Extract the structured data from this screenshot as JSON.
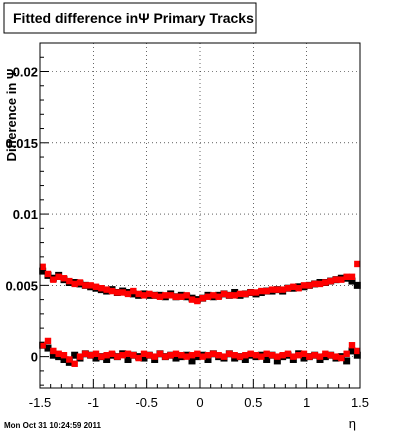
{
  "chart_data": {
    "type": "scatter",
    "title": "Fitted difference inΨ   Primary Tracks",
    "xlabel": "η",
    "ylabel": "Difference in Ψ",
    "xlim": [
      -1.5,
      1.5
    ],
    "ylim": [
      -0.0022,
      0.022
    ],
    "x_ticks": [
      -1.5,
      -1,
      -0.5,
      0,
      0.5,
      1,
      1.5
    ],
    "x_tick_labels": [
      "-1.5",
      "-1",
      "-0.5",
      "0",
      "0.5",
      "1",
      "1.5"
    ],
    "y_ticks": [
      0,
      0.005,
      0.01,
      0.015,
      0.02
    ],
    "y_tick_labels": [
      "0",
      "0.005",
      "0.01",
      "0.015",
      "0.02"
    ],
    "grid": true,
    "series": [
      {
        "color": "#000000",
        "x": [
          -1.475,
          -1.425,
          -1.375,
          -1.325,
          -1.275,
          -1.225,
          -1.175,
          -1.125,
          -1.075,
          -1.025,
          -0.975,
          -0.925,
          -0.875,
          -0.825,
          -0.775,
          -0.725,
          -0.675,
          -0.625,
          -0.575,
          -0.525,
          -0.475,
          -0.425,
          -0.375,
          -0.325,
          -0.275,
          -0.225,
          -0.175,
          -0.125,
          -0.075,
          -0.025,
          0.025,
          0.075,
          0.125,
          0.175,
          0.225,
          0.275,
          0.325,
          0.375,
          0.425,
          0.475,
          0.525,
          0.575,
          0.625,
          0.675,
          0.725,
          0.775,
          0.825,
          0.875,
          0.925,
          0.975,
          1.025,
          1.075,
          1.125,
          1.175,
          1.225,
          1.275,
          1.325,
          1.375,
          1.425,
          1.475,
          -1.475,
          -1.425,
          -1.375,
          -1.325,
          -1.275,
          -1.225,
          -1.175,
          -1.125,
          -1.075,
          -1.025,
          -0.975,
          -0.925,
          -0.875,
          -0.825,
          -0.775,
          -0.725,
          -0.675,
          -0.625,
          -0.575,
          -0.525,
          -0.475,
          -0.425,
          -0.375,
          -0.325,
          -0.275,
          -0.225,
          -0.175,
          -0.125,
          -0.075,
          -0.025,
          0.025,
          0.075,
          0.125,
          0.175,
          0.225,
          0.275,
          0.325,
          0.375,
          0.425,
          0.475,
          0.525,
          0.575,
          0.625,
          0.675,
          0.725,
          0.775,
          0.825,
          0.875,
          0.925,
          0.975,
          1.025,
          1.075,
          1.125,
          1.175,
          1.225,
          1.275,
          1.325,
          1.375,
          1.425,
          1.475
        ],
        "y": [
          0.006,
          0.0057,
          0.0055,
          0.0057,
          0.0054,
          0.0052,
          0.0052,
          0.0051,
          0.005,
          0.0049,
          0.0048,
          0.0047,
          0.0046,
          0.0047,
          0.0045,
          0.0046,
          0.0045,
          0.0044,
          0.0043,
          0.0044,
          0.0043,
          0.0043,
          0.0043,
          0.0042,
          0.0044,
          0.0042,
          0.0043,
          0.0042,
          0.0041,
          0.004,
          0.0041,
          0.0043,
          0.0042,
          0.0043,
          0.0044,
          0.0043,
          0.0045,
          0.0043,
          0.0044,
          0.0045,
          0.0044,
          0.0045,
          0.0046,
          0.0046,
          0.0047,
          0.0046,
          0.0048,
          0.0048,
          0.0049,
          0.0049,
          0.005,
          0.0051,
          0.0052,
          0.0052,
          0.0053,
          0.0054,
          0.0055,
          0.0055,
          0.0053,
          0.005,
          0.0008,
          0.0006,
          0.0001,
          0.0,
          -0.0002,
          -0.0004,
          0.0001,
          -0.0001,
          0.0002,
          0.0001,
          -0.0001,
          0.0,
          -0.0002,
          0.0001,
          0.0,
          0.0002,
          -0.0002,
          0.0001,
          0.0,
          -0.0001,
          0.0001,
          -0.0002,
          0.0002,
          0.0,
          0.0001,
          -0.0001,
          0.0,
          0.0001,
          -0.0003,
          0.0,
          0.0001,
          -0.0002,
          0.0002,
          0.0,
          -0.0001,
          0.0002,
          -0.0001,
          0.0,
          -0.0002,
          0.0001,
          0.0,
          0.0001,
          -0.0002,
          0.0001,
          -0.0003,
          0.0,
          0.0001,
          -0.0002,
          0.0002,
          -0.0001,
          0.0,
          0.0001,
          -0.0002,
          0.0,
          0.0001,
          -0.0001,
          0.0,
          -0.0003,
          0.0004,
          0.0001
        ]
      },
      {
        "color": "#ff0000",
        "x": [
          -1.475,
          -1.425,
          -1.375,
          -1.325,
          -1.275,
          -1.225,
          -1.175,
          -1.125,
          -1.075,
          -1.025,
          -0.975,
          -0.925,
          -0.875,
          -0.825,
          -0.775,
          -0.725,
          -0.675,
          -0.625,
          -0.575,
          -0.525,
          -0.475,
          -0.425,
          -0.375,
          -0.325,
          -0.275,
          -0.225,
          -0.175,
          -0.125,
          -0.075,
          -0.025,
          0.025,
          0.075,
          0.125,
          0.175,
          0.225,
          0.275,
          0.325,
          0.375,
          0.425,
          0.475,
          0.525,
          0.575,
          0.625,
          0.675,
          0.725,
          0.775,
          0.825,
          0.875,
          0.925,
          0.975,
          1.025,
          1.075,
          1.125,
          1.175,
          1.225,
          1.275,
          1.325,
          1.375,
          1.425,
          1.475,
          -1.475,
          -1.425,
          -1.375,
          -1.325,
          -1.275,
          -1.225,
          -1.175,
          -1.125,
          -1.075,
          -1.025,
          -0.975,
          -0.925,
          -0.875,
          -0.825,
          -0.775,
          -0.725,
          -0.675,
          -0.625,
          -0.575,
          -0.525,
          -0.475,
          -0.425,
          -0.375,
          -0.325,
          -0.275,
          -0.225,
          -0.175,
          -0.125,
          -0.075,
          -0.025,
          0.025,
          0.075,
          0.125,
          0.175,
          0.225,
          0.275,
          0.325,
          0.375,
          0.425,
          0.475,
          0.525,
          0.575,
          0.625,
          0.675,
          0.725,
          0.775,
          0.825,
          0.875,
          0.925,
          0.975,
          1.025,
          1.075,
          1.125,
          1.175,
          1.225,
          1.275,
          1.325,
          1.375,
          1.425,
          1.475
        ],
        "y": [
          0.0063,
          0.0058,
          0.0054,
          0.0056,
          0.0055,
          0.0053,
          0.0051,
          0.0052,
          0.005,
          0.005,
          0.0049,
          0.0048,
          0.0047,
          0.0046,
          0.0045,
          0.0045,
          0.0044,
          0.0046,
          0.0044,
          0.0043,
          0.0044,
          0.0043,
          0.0042,
          0.0043,
          0.0043,
          0.0042,
          0.0042,
          0.0043,
          0.004,
          0.0039,
          0.0041,
          0.0042,
          0.0043,
          0.0042,
          0.0044,
          0.0043,
          0.0043,
          0.0044,
          0.0044,
          0.0045,
          0.0045,
          0.0046,
          0.0046,
          0.0047,
          0.0047,
          0.0047,
          0.0048,
          0.0049,
          0.0048,
          0.005,
          0.005,
          0.0051,
          0.0051,
          0.0052,
          0.0053,
          0.0054,
          0.0054,
          0.0056,
          0.0056,
          0.0065,
          0.0008,
          0.0011,
          0.0004,
          0.0002,
          0.0001,
          -0.0002,
          -0.0005,
          0.0,
          0.0002,
          0.0001,
          0.0002,
          0.0,
          0.0001,
          0.0002,
          0.0,
          0.0001,
          0.0002,
          0.0001,
          -0.0001,
          0.0002,
          0.0001,
          0.0,
          0.0002,
          0.0,
          0.0001,
          0.0002,
          0.0001,
          0.0,
          0.0001,
          0.0002,
          0.0,
          0.0001,
          0.0002,
          0.0001,
          0.0,
          0.0002,
          0.0001,
          0.0,
          0.0001,
          0.0002,
          0.0001,
          0.0,
          0.0002,
          0.0001,
          0.0,
          0.0001,
          0.0002,
          0.0,
          0.0001,
          0.0002,
          0.0,
          0.0001,
          0.0,
          0.0002,
          0.0001,
          0.0,
          -0.0001,
          0.0002,
          0.0008,
          0.0004
        ]
      }
    ]
  },
  "footer": {
    "timestamp": "Mon Oct 31 10:24:59 2011"
  }
}
